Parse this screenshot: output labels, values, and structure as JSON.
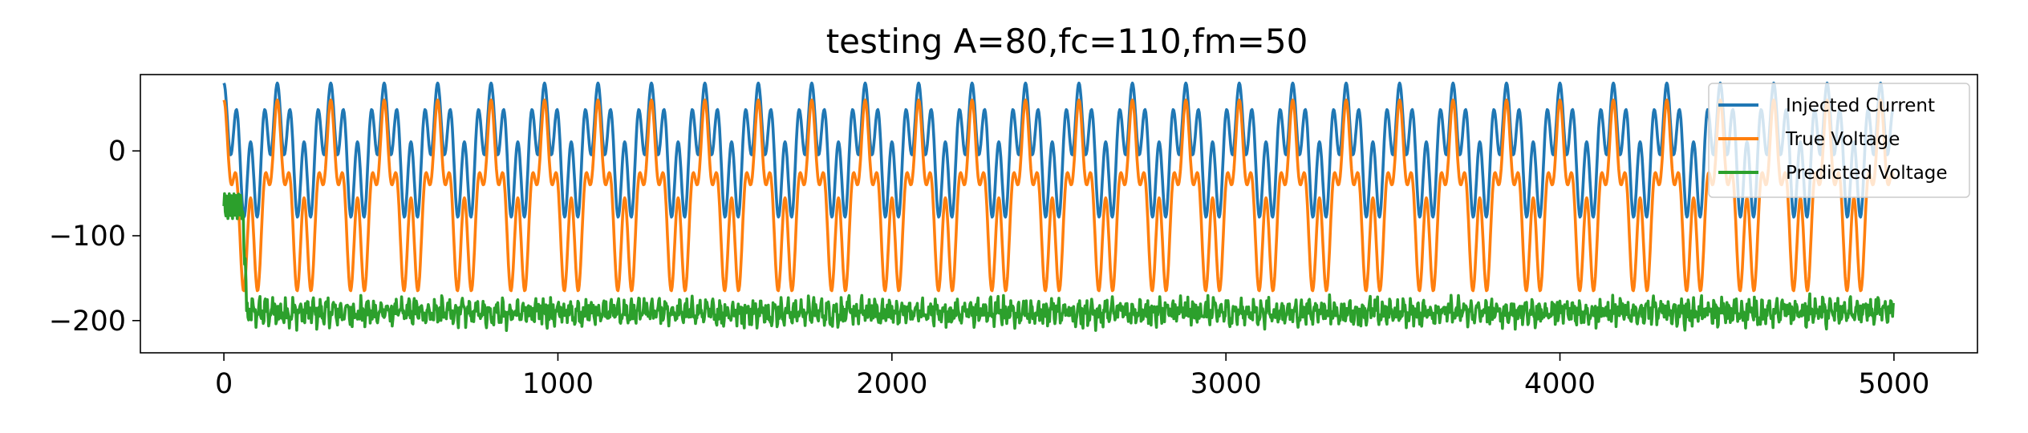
{
  "chart_data": {
    "type": "line",
    "title": "testing A=80,fc=110,fm=50",
    "xlabel": "",
    "ylabel": "",
    "xlim": [
      -250,
      5250
    ],
    "ylim": [
      -238,
      90
    ],
    "x_ticks": [
      0,
      1000,
      2000,
      3000,
      4000,
      5000
    ],
    "x_tick_labels": [
      "0",
      "1000",
      "2000",
      "3000",
      "4000",
      "5000"
    ],
    "y_ticks": [
      0,
      -100,
      -200
    ],
    "y_tick_labels": [
      "0",
      "−100",
      "−200"
    ],
    "grid": false,
    "legend_position": "upper right",
    "n_points": 5000,
    "series": [
      {
        "name": "Injected Current",
        "color": "#1f77b4",
        "formula": "current",
        "peaks": {
          "max": 80,
          "min": -78
        }
      },
      {
        "name": "True Voltage",
        "color": "#ff7f0e",
        "formula": "voltage",
        "peaks": {
          "max": 60,
          "min": -165
        }
      },
      {
        "name": "Predicted Voltage",
        "color": "#2ca02c",
        "formula": "predicted",
        "baseline": -190,
        "start_value": -65
      }
    ]
  }
}
